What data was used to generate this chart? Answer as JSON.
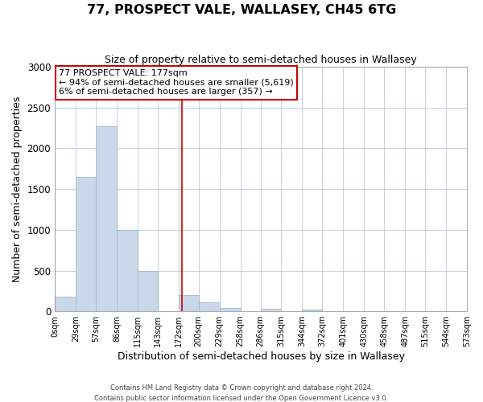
{
  "title": "77, PROSPECT VALE, WALLASEY, CH45 6TG",
  "subtitle": "Size of property relative to semi-detached houses in Wallasey",
  "xlabel": "Distribution of semi-detached houses by size in Wallasey",
  "ylabel": "Number of semi-detached properties",
  "bin_edges": [
    0,
    29,
    57,
    86,
    115,
    143,
    172,
    200,
    229,
    258,
    286,
    315,
    344,
    372,
    401,
    430,
    458,
    487,
    515,
    544,
    573
  ],
  "bin_counts": [
    175,
    1650,
    2270,
    1000,
    500,
    0,
    200,
    110,
    45,
    0,
    35,
    0,
    20,
    0,
    0,
    0,
    0,
    0,
    0,
    5
  ],
  "property_size": 177,
  "bar_color": "#c8d8ea",
  "bar_edge_color": "#a0b8cc",
  "vline_color": "#cc0000",
  "annotation_box_edgecolor": "#cc0000",
  "background_color": "#ffffff",
  "grid_color": "#c5cfe0",
  "annotation_text_line1": "77 PROSPECT VALE: 177sqm",
  "annotation_text_line2": "← 94% of semi-detached houses are smaller (5,619)",
  "annotation_text_line3": "6% of semi-detached houses are larger (357) →",
  "footer_line1": "Contains HM Land Registry data © Crown copyright and database right 2024.",
  "footer_line2": "Contains public sector information licensed under the Open Government Licence v3.0.",
  "ylim": [
    0,
    3000
  ],
  "yticks": [
    0,
    500,
    1000,
    1500,
    2000,
    2500,
    3000
  ],
  "tick_labels": [
    "0sqm",
    "29sqm",
    "57sqm",
    "86sqm",
    "115sqm",
    "143sqm",
    "172sqm",
    "200sqm",
    "229sqm",
    "258sqm",
    "286sqm",
    "315sqm",
    "344sqm",
    "372sqm",
    "401sqm",
    "430sqm",
    "458sqm",
    "487sqm",
    "515sqm",
    "544sqm",
    "573sqm"
  ]
}
